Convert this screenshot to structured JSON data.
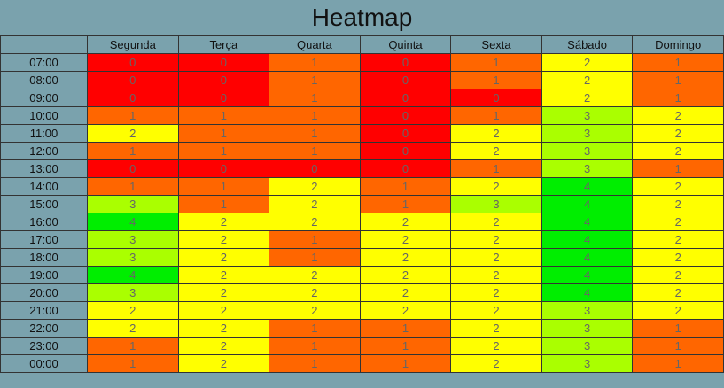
{
  "chart_data": {
    "type": "heatmap",
    "title": "Heatmap",
    "columns": [
      "Segunda",
      "Terça",
      "Quarta",
      "Quinta",
      "Sexta",
      "Sábado",
      "Domingo"
    ],
    "rows": [
      "07:00",
      "08:00",
      "09:00",
      "10:00",
      "11:00",
      "12:00",
      "13:00",
      "14:00",
      "15:00",
      "16:00",
      "17:00",
      "18:00",
      "19:00",
      "20:00",
      "21:00",
      "22:00",
      "23:00",
      "00:00"
    ],
    "values": [
      [
        0,
        0,
        1,
        0,
        1,
        2,
        1
      ],
      [
        0,
        0,
        1,
        0,
        1,
        2,
        1
      ],
      [
        0,
        0,
        1,
        0,
        0,
        2,
        1
      ],
      [
        1,
        1,
        1,
        0,
        1,
        3,
        2
      ],
      [
        2,
        1,
        1,
        0,
        2,
        3,
        2
      ],
      [
        1,
        1,
        1,
        0,
        2,
        3,
        2
      ],
      [
        0,
        0,
        0,
        0,
        1,
        3,
        1
      ],
      [
        1,
        1,
        2,
        1,
        2,
        4,
        2
      ],
      [
        3,
        1,
        2,
        1,
        3,
        4,
        2
      ],
      [
        4,
        2,
        2,
        2,
        2,
        4,
        2
      ],
      [
        3,
        2,
        1,
        2,
        2,
        4,
        2
      ],
      [
        3,
        2,
        1,
        2,
        2,
        4,
        2
      ],
      [
        4,
        2,
        2,
        2,
        2,
        4,
        2
      ],
      [
        3,
        2,
        2,
        2,
        2,
        4,
        2
      ],
      [
        2,
        2,
        2,
        2,
        2,
        3,
        2
      ],
      [
        2,
        2,
        1,
        1,
        2,
        3,
        1
      ],
      [
        1,
        2,
        1,
        1,
        2,
        3,
        1
      ],
      [
        1,
        2,
        1,
        1,
        2,
        3,
        1
      ]
    ],
    "color_scale": {
      "0": "#ff0000",
      "1": "#ff6600",
      "2": "#ffff00",
      "3": "#aaff00",
      "4": "#00ee00"
    }
  }
}
